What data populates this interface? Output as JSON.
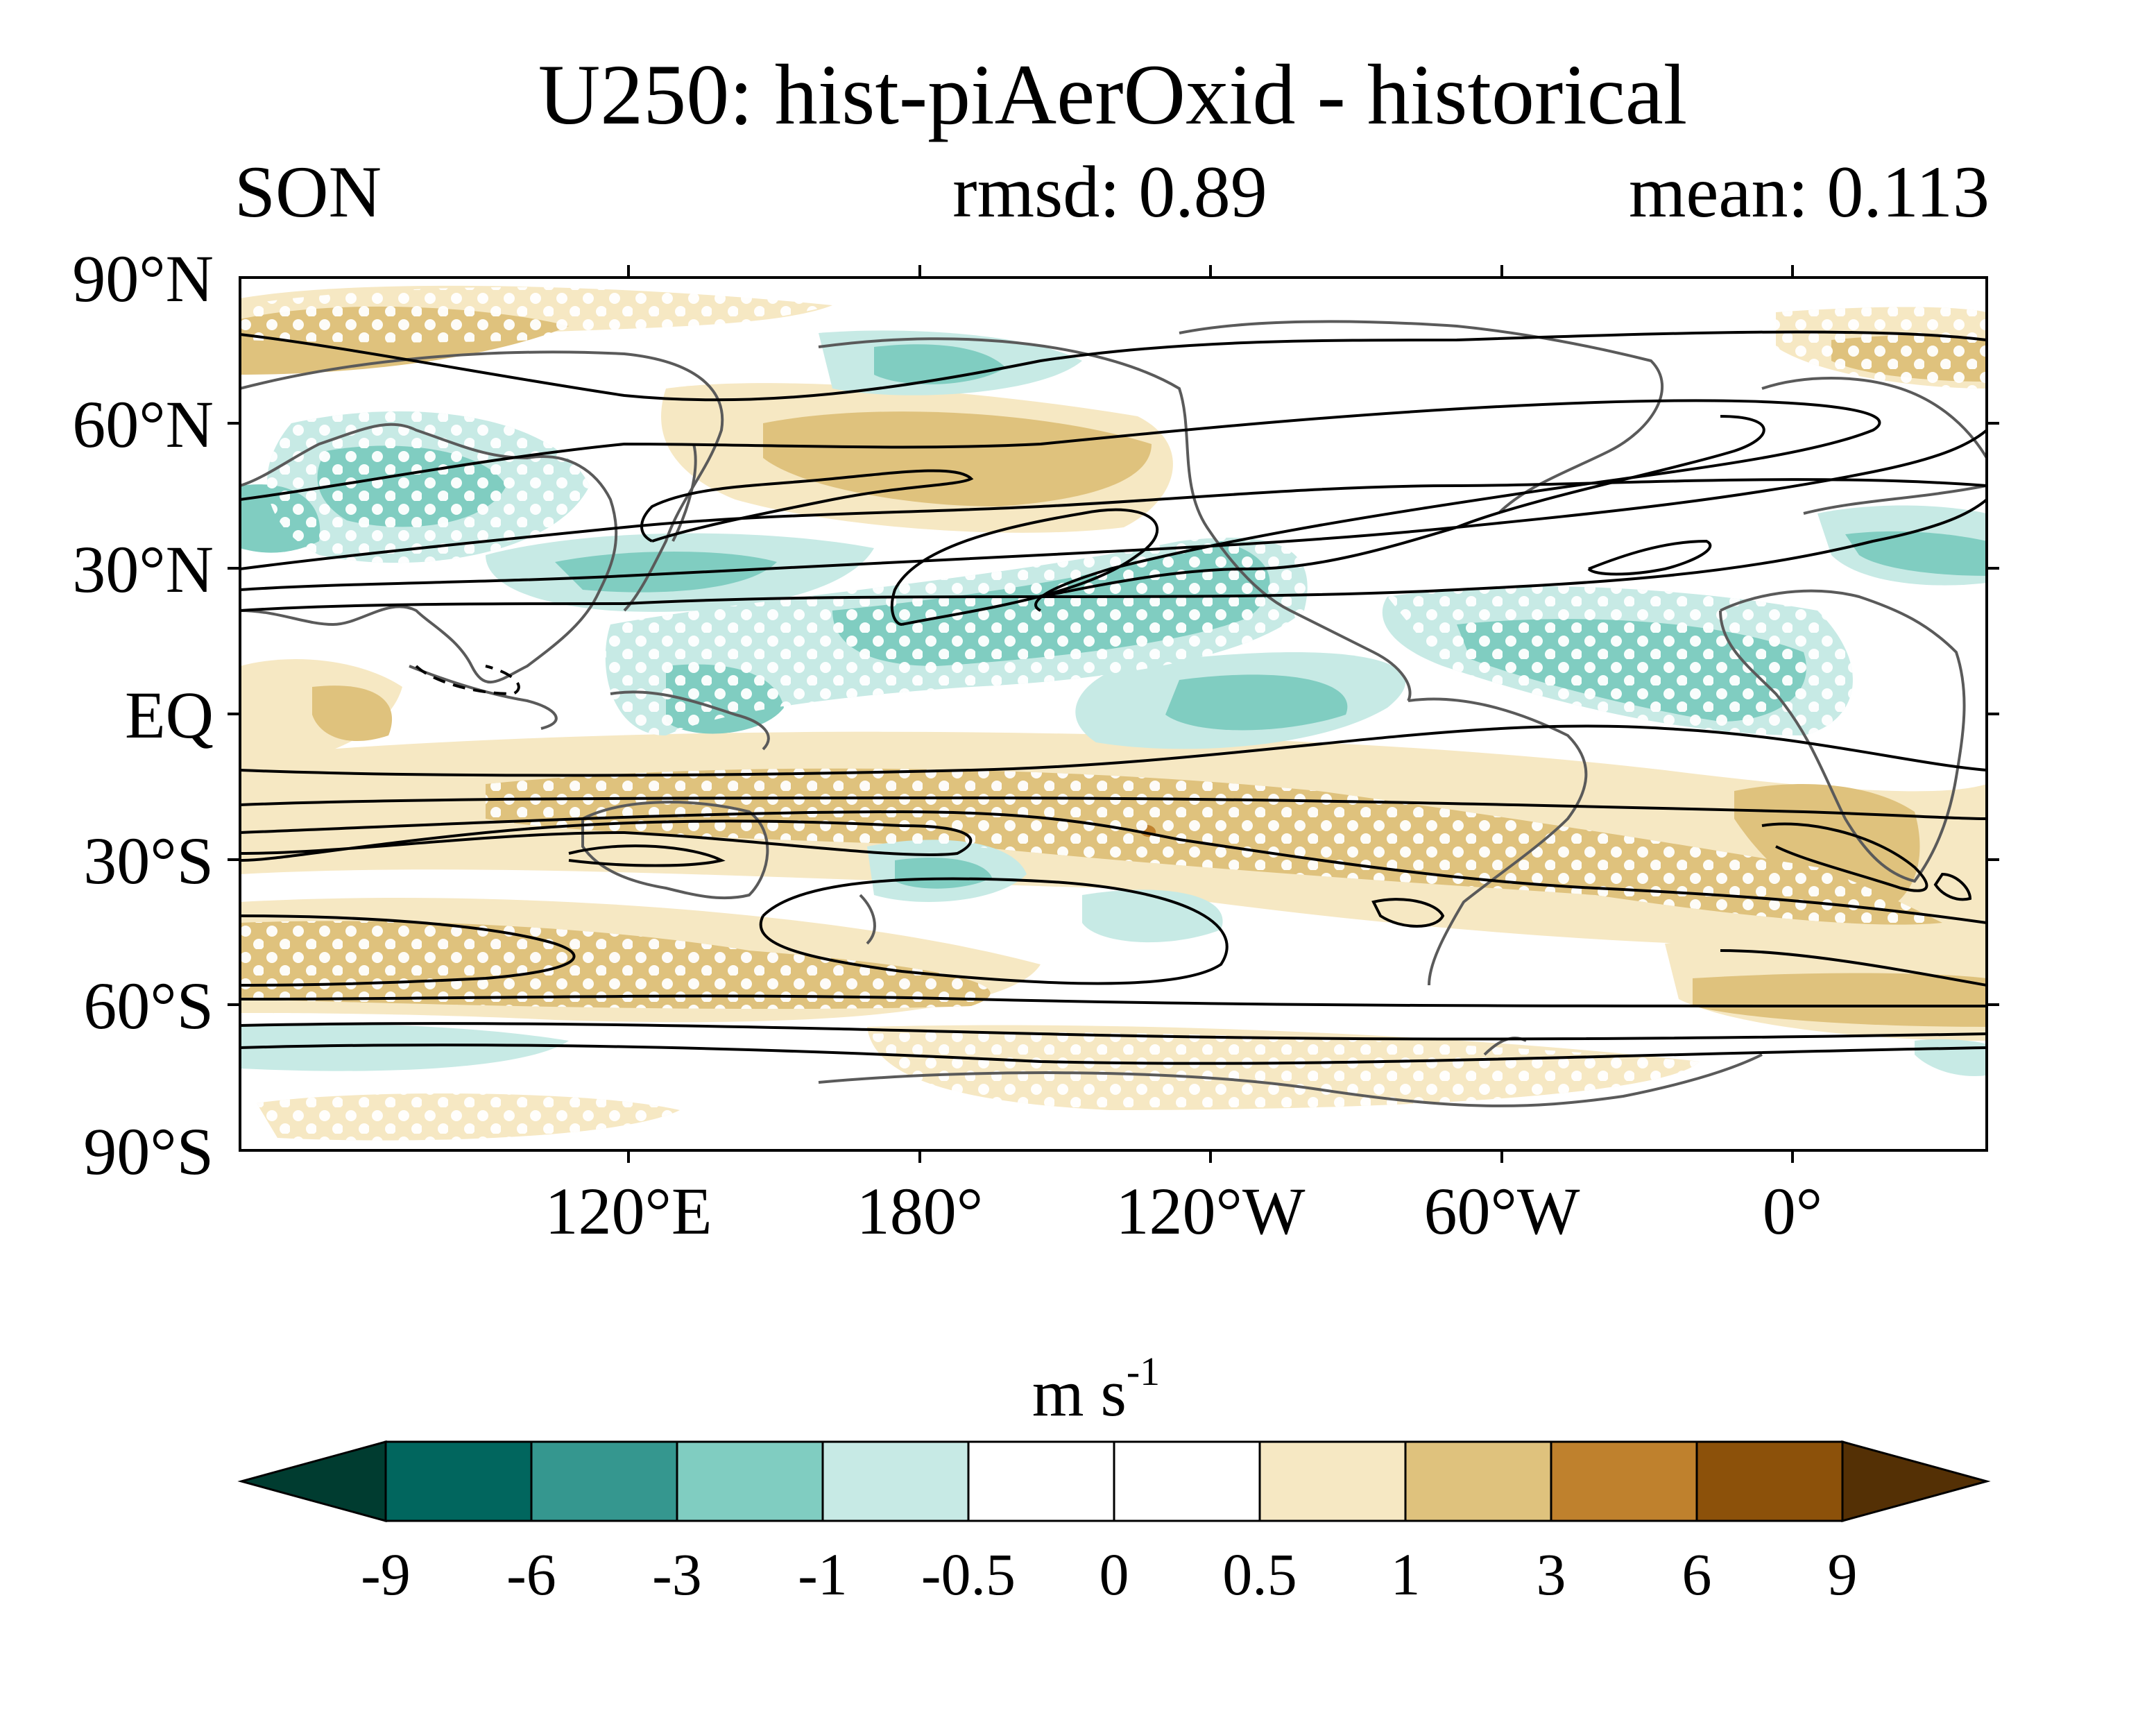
{
  "title": "U250: hist-piAerOxid - historical",
  "subtitle_left": "SON",
  "subtitle_center": "rmsd: 0.89",
  "subtitle_right": "mean: 0.113",
  "lat_labels": [
    "90°N",
    "60°N",
    "30°N",
    "EQ",
    "30°S",
    "60°S",
    "90°S"
  ],
  "lon_labels": [
    "120°E",
    "180°",
    "120°W",
    "60°W",
    "0°"
  ],
  "colorbar": {
    "unit_base": "m s",
    "unit_exp": "-1",
    "labels": [
      "-9",
      "-6",
      "-3",
      "-1",
      "-0.5",
      "0",
      "0.5",
      "1",
      "3",
      "6",
      "9"
    ],
    "colors": [
      "#003c30",
      "#01665e",
      "#35978f",
      "#80cdc1",
      "#c7eae5",
      "#ffffff",
      "#ffffff",
      "#f6e8c3",
      "#dfc27d",
      "#bf812d",
      "#8c510a",
      "#543005"
    ]
  },
  "chart_data": {
    "type": "heatmap",
    "title": "U250: hist-piAerOxid - historical",
    "season": "SON",
    "rmsd": 0.89,
    "mean": 0.113,
    "lat_range": [
      -90,
      90
    ],
    "lon_range": [
      40,
      400
    ],
    "levels": [
      -9,
      -6,
      -3,
      -1,
      -0.5,
      0,
      0.5,
      1,
      3,
      6,
      9
    ],
    "colorbar_label": "m s-1",
    "features": "anomaly shading with stippling for significance, black contours of climatological zonal wind, grey coastlines"
  }
}
